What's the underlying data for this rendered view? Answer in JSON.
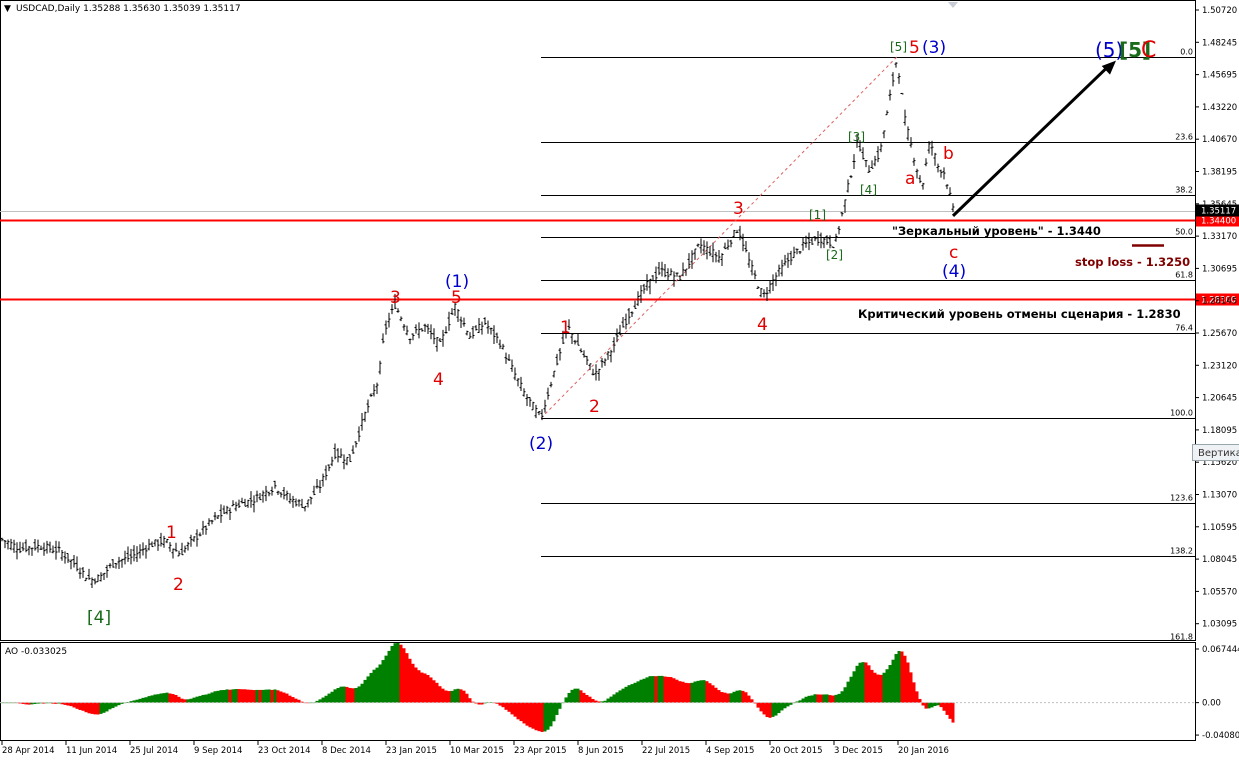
{
  "window": {
    "symbol_info": "USDCAD,Daily  1.35288 1.35630 1.35039 1.35117",
    "dropdown_glyph": "▼"
  },
  "colors": {
    "background": "#ffffff",
    "bull_candle": "#008000",
    "bear_candle": "#ff0000",
    "candle_line": "#000000",
    "level_line": "#ff0000",
    "fib_line": "#000000",
    "wave_red": "#e00000",
    "wave_blue": "#0000cc",
    "wave_green": "#1a6a1a",
    "stop_loss_line": "#800000"
  },
  "price_axis": {
    "ticks": [
      "1.50720",
      "1.48245",
      "1.45695",
      "1.43220",
      "1.40670",
      "1.38195",
      "1.35645",
      "1.33170",
      "1.30695",
      "1.28145",
      "1.25670",
      "1.23120",
      "1.20645",
      "1.18095",
      "1.15620",
      "1.13070",
      "1.10595",
      "1.08045",
      "1.05570",
      "1.03095"
    ],
    "current_price_tag": "1.35117",
    "level_tags": [
      "1.34400",
      "1.28300"
    ]
  },
  "indicator": {
    "label": "AO -0.033025",
    "ticks": [
      "0.067444",
      "0.00",
      "-0.040801"
    ]
  },
  "time_axis": {
    "labels": [
      "28 Apr 2014",
      "11 Jun 2014",
      "25 Jul 2014",
      "9 Sep 2014",
      "23 Oct 2014",
      "8 Dec 2014",
      "23 Jan 2015",
      "10 Mar 2015",
      "23 Apr 2015",
      "8 Jun 2015",
      "22 Jul 2015",
      "4 Sep 2015",
      "20 Oct 2015",
      "3 Dec 2015",
      "20 Jan 2016"
    ]
  },
  "fibonacci": {
    "levels": [
      "0.0",
      "23.6",
      "38.2",
      "50.0",
      "61.8",
      "76.4",
      "100.0",
      "123.6",
      "138.2",
      "161.8"
    ],
    "high": 1.469,
    "low": 1.192
  },
  "annotations": {
    "mirror_level": "\"Зеркальный уровень\" - 1.3440",
    "critical_level": "Критический уровень отмены сценария - 1.2830",
    "stop_loss": "stop loss - 1.3250"
  },
  "wave_labels": {
    "w4_green": "[4]",
    "red1_a": "1",
    "red2_a": "2",
    "red3_a": "3",
    "red4_a": "4",
    "red5_a": "5",
    "blue1": "(1)",
    "blue2": "(2)",
    "red1_b": "1",
    "red2_b": "2",
    "red3_b": "3",
    "red4_b": "4",
    "g1": "[1]",
    "g2": "[2]",
    "g3": "[3]",
    "g4": "[4]",
    "g5_top": "[5]",
    "red5_b": "5",
    "blue3": "(3)",
    "red_a": "a",
    "red_b": "b",
    "red_c": "c",
    "blue4": "(4)",
    "target_blue5": "(5)",
    "target_green5": "[5]",
    "target_red_c": "C"
  },
  "tooltip": "Вертика",
  "chart_data": {
    "type": "candlestick",
    "symbol": "USDCAD",
    "timeframe": "Daily",
    "ohlc_last": {
      "open": 1.35288,
      "high": 1.3563,
      "low": 1.35039,
      "close": 1.35117
    },
    "price_range": [
      1.022,
      1.5125
    ],
    "x_labels": [
      "28 Apr 2014",
      "11 Jun 2014",
      "25 Jul 2014",
      "9 Sep 2014",
      "23 Oct 2014",
      "8 Dec 2014",
      "23 Jan 2015",
      "10 Mar 2015",
      "23 Apr 2015",
      "8 Jun 2015",
      "22 Jul 2015",
      "4 Sep 2015",
      "20 Oct 2015",
      "3 Dec 2015",
      "20 Jan 2016"
    ],
    "price_path": [
      [
        0,
        1.1
      ],
      [
        20,
        1.092
      ],
      [
        40,
        1.094
      ],
      [
        60,
        1.09
      ],
      [
        75,
        1.08
      ],
      [
        90,
        1.068
      ],
      [
        100,
        1.07
      ],
      [
        115,
        1.082
      ],
      [
        130,
        1.085
      ],
      [
        150,
        1.095
      ],
      [
        165,
        1.098
      ],
      [
        180,
        1.088
      ],
      [
        195,
        1.1
      ],
      [
        215,
        1.115
      ],
      [
        235,
        1.125
      ],
      [
        255,
        1.13
      ],
      [
        275,
        1.14
      ],
      [
        290,
        1.13
      ],
      [
        305,
        1.125
      ],
      [
        320,
        1.14
      ],
      [
        335,
        1.165
      ],
      [
        350,
        1.16
      ],
      [
        365,
        1.195
      ],
      [
        378,
        1.22
      ],
      [
        385,
        1.26
      ],
      [
        395,
        1.279
      ],
      [
        410,
        1.255
      ],
      [
        425,
        1.262
      ],
      [
        440,
        1.248
      ],
      [
        455,
        1.278
      ],
      [
        470,
        1.255
      ],
      [
        485,
        1.265
      ],
      [
        500,
        1.25
      ],
      [
        512,
        1.23
      ],
      [
        525,
        1.21
      ],
      [
        541,
        1.192
      ],
      [
        555,
        1.23
      ],
      [
        568,
        1.262
      ],
      [
        580,
        1.245
      ],
      [
        595,
        1.225
      ],
      [
        612,
        1.245
      ],
      [
        628,
        1.27
      ],
      [
        645,
        1.292
      ],
      [
        660,
        1.305
      ],
      [
        680,
        1.3
      ],
      [
        700,
        1.325
      ],
      [
        720,
        1.315
      ],
      [
        738,
        1.338
      ],
      [
        750,
        1.31
      ],
      [
        763,
        1.285
      ],
      [
        775,
        1.3
      ],
      [
        790,
        1.315
      ],
      [
        805,
        1.325
      ],
      [
        820,
        1.33
      ],
      [
        835,
        1.325
      ],
      [
        845,
        1.358
      ],
      [
        858,
        1.405
      ],
      [
        868,
        1.382
      ],
      [
        880,
        1.395
      ],
      [
        890,
        1.438
      ],
      [
        897,
        1.469
      ],
      [
        905,
        1.42
      ],
      [
        912,
        1.398
      ],
      [
        922,
        1.368
      ],
      [
        930,
        1.405
      ],
      [
        938,
        1.385
      ],
      [
        945,
        1.38
      ],
      [
        953,
        1.351
      ]
    ],
    "horizontal_levels": [
      {
        "price": 1.344,
        "label": "\"Зеркальный уровень\" - 1.3440"
      },
      {
        "price": 1.283,
        "label": "Критический уровень отмены сценария - 1.2830"
      }
    ],
    "stop_loss": 1.325,
    "fibonacci_levels": [
      0.0,
      23.6,
      38.2,
      50.0,
      61.8,
      76.4,
      100.0,
      123.6,
      138.2,
      161.8
    ],
    "forecast_arrow": {
      "from_price": 1.344,
      "to_price": 1.466
    },
    "ao_indicator": {
      "current": -0.033025,
      "axis_max": 0.067444,
      "axis_min": -0.040801
    }
  }
}
